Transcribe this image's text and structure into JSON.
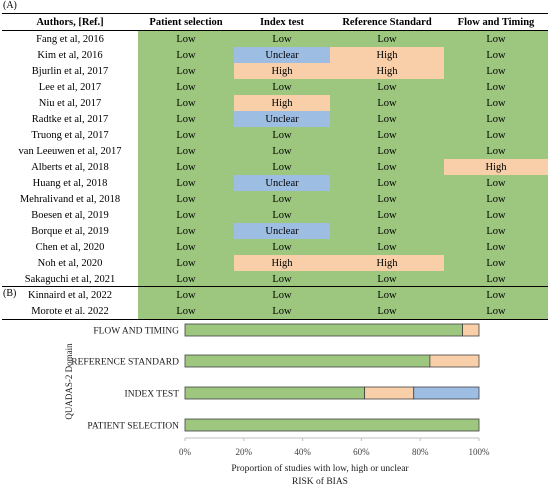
{
  "colors": {
    "low": "#9dc77f",
    "high": "#f9cfa9",
    "unclear": "#9dbde3"
  },
  "panel_a_label": "(A)",
  "panel_b_label": "(B)",
  "table": {
    "headers": [
      "Authors, [Ref.]",
      "Patient selection",
      "Index test",
      "Reference Standard",
      "Flow and Timing"
    ],
    "rows": [
      [
        "Fang et al, 2016",
        "Low",
        "Low",
        "Low",
        "Low"
      ],
      [
        "Kim et al, 2016",
        "Low",
        "Unclear",
        "High",
        "Low"
      ],
      [
        "Bjurlin et al, 2017",
        "Low",
        "High",
        "High",
        "Low"
      ],
      [
        "Lee et al, 2017",
        "Low",
        "Low",
        "Low",
        "Low"
      ],
      [
        "Niu et al, 2017",
        "Low",
        "High",
        "Low",
        "Low"
      ],
      [
        "Radtke et al, 2017",
        "Low",
        "Unclear",
        "Low",
        "Low"
      ],
      [
        "Truong et al, 2017",
        "Low",
        "Low",
        "Low",
        "Low"
      ],
      [
        "van Leeuwen et al, 2017",
        "Low",
        "Low",
        "Low",
        "Low"
      ],
      [
        "Alberts et al, 2018",
        "Low",
        "Low",
        "Low",
        "High"
      ],
      [
        "Huang et al, 2018",
        "Low",
        "Unclear",
        "Low",
        "Low"
      ],
      [
        "Mehralivand et al, 2018",
        "Low",
        "Low",
        "Low",
        "Low"
      ],
      [
        "Boesen et al, 2019",
        "Low",
        "Low",
        "Low",
        "Low"
      ],
      [
        "Borque et al, 2019",
        "Low",
        "Unclear",
        "Low",
        "Low"
      ],
      [
        "Chen et al, 2020",
        "Low",
        "Low",
        "Low",
        "Low"
      ],
      [
        "Noh et al, 2020",
        "Low",
        "High",
        "High",
        "Low"
      ],
      [
        "Sakaguchi et al, 2021",
        "Low",
        "Low",
        "Low",
        "Low"
      ],
      [
        "Kinnaird et al, 2022",
        "Low",
        "Low",
        "Low",
        "Low"
      ],
      [
        "Morote et al. 2022",
        "Low",
        "Low",
        "Low",
        "Low"
      ]
    ]
  },
  "chart_data": {
    "type": "bar",
    "orientation": "horizontal-stacked",
    "categories": [
      "FLOW AND TIMING",
      "REFERENCE STANDARD",
      "INDEX TEST",
      "PATIENT SELECTION"
    ],
    "series": [
      {
        "key": "low",
        "values": [
          94.4,
          83.3,
          61.1,
          100
        ]
      },
      {
        "key": "high",
        "values": [
          5.6,
          16.7,
          16.7,
          0
        ]
      },
      {
        "key": "unclear",
        "values": [
          0,
          0,
          22.2,
          0
        ]
      }
    ],
    "ylabel": "QUADAS-2 Domain",
    "xlabel": "Proportion of studies with low, high or unclear",
    "xlabel2": "RISK of BIAS",
    "xlim": [
      0,
      100
    ],
    "xticks": [
      "0%",
      "20%",
      "40%",
      "60%",
      "80%",
      "100%"
    ],
    "grid": false,
    "legend": "none"
  }
}
